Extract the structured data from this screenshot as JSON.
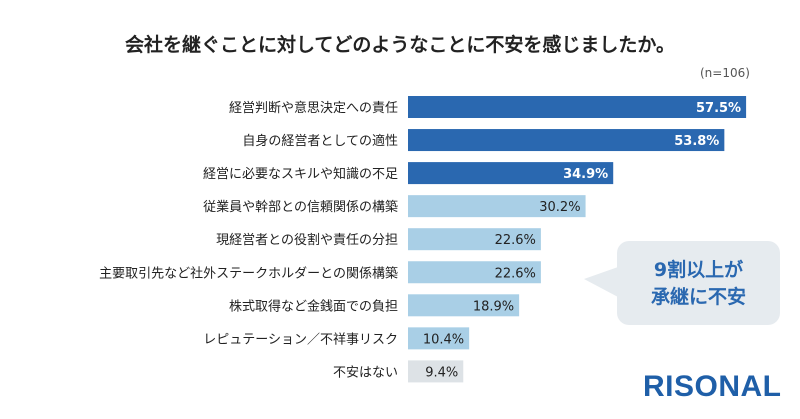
{
  "chart_data": {
    "type": "bar",
    "orientation": "horizontal",
    "title": "会社を継ぐことに対してどのようなことに不安を感じましたか。",
    "note": "(n=106)",
    "categories": [
      "経営判断や意思決定への責任",
      "自身の経営者としての適性",
      "経営に必要なスキルや知識の不足",
      "従業員や幹部との信頼関係の構築",
      "現経営者との役割や責任の分担",
      "主要取引先など社外ステークホルダーとの関係構築",
      "株式取得など金銭面での負担",
      "レピュテーション／不祥事リスク",
      "不安はない"
    ],
    "values": [
      57.5,
      53.8,
      34.9,
      30.2,
      22.6,
      22.6,
      18.9,
      10.4,
      9.4
    ],
    "labels": [
      "57.5%",
      "53.8%",
      "34.9%",
      "30.2%",
      "22.6%",
      "22.6%",
      "18.9%",
      "10.4%",
      "9.4%"
    ],
    "colors": [
      "#2a68b0",
      "#2a68b0",
      "#2a68b0",
      "#a9cfe6",
      "#a9cfe6",
      "#a9cfe6",
      "#a9cfe6",
      "#a9cfe6",
      "#dde2e6"
    ],
    "grid": false
  },
  "callout": {
    "line1": "9割以上が",
    "line2": "承継に不安"
  },
  "logo": "RISONAL"
}
